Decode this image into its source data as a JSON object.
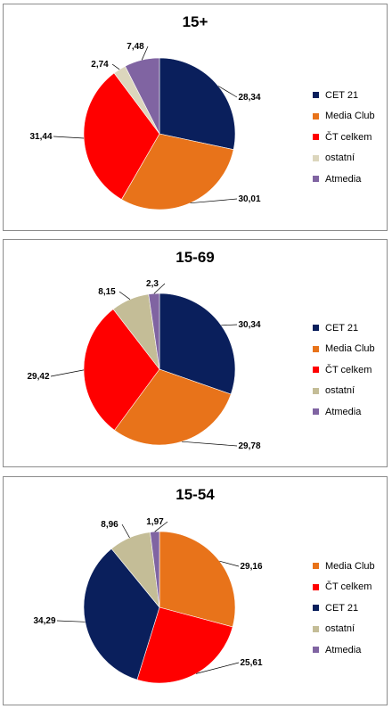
{
  "chart_data": [
    {
      "type": "pie",
      "title": "15+",
      "slices": [
        {
          "label": "CET 21",
          "value": 28.34,
          "value_label": "28,34",
          "color": "#0a1f5c"
        },
        {
          "label": "Media Club",
          "value": 30.01,
          "value_label": "30,01",
          "color": "#e8731a"
        },
        {
          "label": "ČT celkem",
          "value": 31.44,
          "value_label": "31,44",
          "color": "#ff0000"
        },
        {
          "label": "ostatní",
          "value": 2.74,
          "value_label": "2,74",
          "color": "#dcd6bd"
        },
        {
          "label": "Atmedia",
          "value": 7.48,
          "value_label": "7,48",
          "color": "#8064a2"
        }
      ],
      "legend_position": "right"
    },
    {
      "type": "pie",
      "title": "15-69",
      "slices": [
        {
          "label": "CET 21",
          "value": 30.34,
          "value_label": "30,34",
          "color": "#0a1f5c"
        },
        {
          "label": "Media Club",
          "value": 29.78,
          "value_label": "29,78",
          "color": "#e8731a"
        },
        {
          "label": "ČT celkem",
          "value": 29.42,
          "value_label": "29,42",
          "color": "#ff0000"
        },
        {
          "label": "ostatní",
          "value": 8.15,
          "value_label": "8,15",
          "color": "#c4bd97"
        },
        {
          "label": "Atmedia",
          "value": 2.3,
          "value_label": "2,3",
          "color": "#8064a2"
        }
      ],
      "legend_position": "right"
    },
    {
      "type": "pie",
      "title": "15-54",
      "slices": [
        {
          "label": "Media Club",
          "value": 29.16,
          "value_label": "29,16",
          "color": "#e8731a"
        },
        {
          "label": "ČT celkem",
          "value": 25.61,
          "value_label": "25,61",
          "color": "#ff0000"
        },
        {
          "label": "CET 21",
          "value": 34.29,
          "value_label": "34,29",
          "color": "#0a1f5c"
        },
        {
          "label": "ostatní",
          "value": 8.96,
          "value_label": "8,96",
          "color": "#c4bd97"
        },
        {
          "label": "Atmedia",
          "value": 1.97,
          "value_label": "1,97",
          "color": "#8064a2"
        }
      ],
      "legend_position": "right"
    }
  ]
}
